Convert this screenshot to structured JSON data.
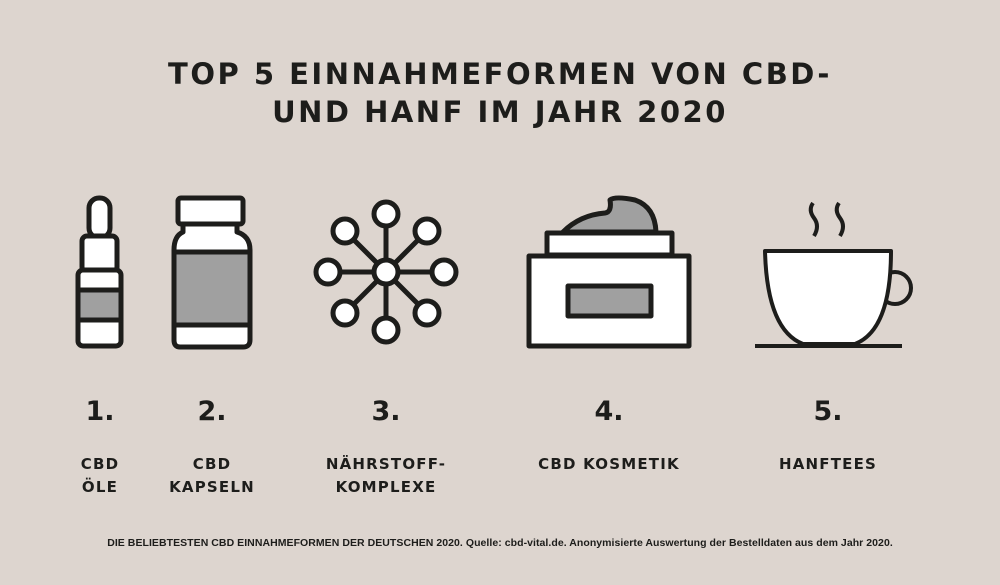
{
  "title": {
    "line1": "TOP 5 EINNAHMEFORMEN VON CBD-",
    "line2": "UND HANF IM JAHR 2020"
  },
  "colors": {
    "background": "#ddd5cf",
    "ink": "#1d1d1b",
    "fill_gray": "#a0a0a0",
    "fill_white": "#ffffff"
  },
  "items": [
    {
      "rank": "1.",
      "label_lines": [
        "CBD",
        "ÖLE"
      ],
      "icon": "dropper-bottle-icon"
    },
    {
      "rank": "2.",
      "label_lines": [
        "CBD",
        "KAPSELN"
      ],
      "icon": "capsule-jar-icon"
    },
    {
      "rank": "3.",
      "label_lines": [
        "NÄHRSTOFF-",
        "KOMPLEXE"
      ],
      "icon": "molecule-network-icon"
    },
    {
      "rank": "4.",
      "label_lines": [
        "CBD KOSMETIK"
      ],
      "icon": "cream-jar-icon"
    },
    {
      "rank": "5.",
      "label_lines": [
        "HANFTEES"
      ],
      "icon": "tea-cup-icon"
    }
  ],
  "footer": "DIE BELIEBTESTEN CBD EINNAHMEFORMEN DER DEUTSCHEN 2020. Quelle: cbd-vital.de. Anonymisierte Auswertung der Bestelldaten aus dem Jahr 2020."
}
